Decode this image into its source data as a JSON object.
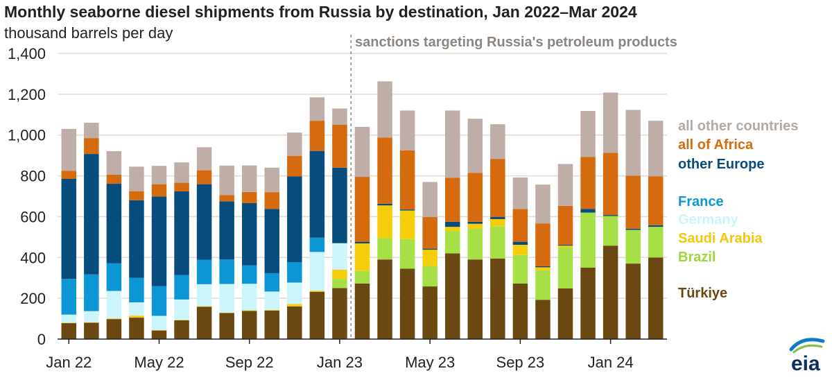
{
  "title": "Monthly seaborne diesel shipments from Russia by destination, Jan 2022–Mar 2024",
  "subtitle": "thousand barrels per day",
  "annotation": "sanctions targeting Russia's petroleum products",
  "logo_text": "eia",
  "colors": {
    "grid": "#e2dccf",
    "axis": "#222222",
    "dash": "#8c8580"
  },
  "chart_data": {
    "type": "bar",
    "stacked": true,
    "ylim": [
      0,
      1400
    ],
    "yticks": [
      "0",
      "200",
      "400",
      "600",
      "800",
      "1,000",
      "1,200",
      "1,400"
    ],
    "ytick_values": [
      0,
      200,
      400,
      600,
      800,
      1000,
      1200,
      1400
    ],
    "xtick_labels": [
      {
        "index": 0,
        "label": "Jan 22"
      },
      {
        "index": 4,
        "label": "May 22"
      },
      {
        "index": 8,
        "label": "Sep 22"
      },
      {
        "index": 12,
        "label": "Jan 23"
      },
      {
        "index": 16,
        "label": "May 23"
      },
      {
        "index": 20,
        "label": "Sep 23"
      },
      {
        "index": 24,
        "label": "Jan 24"
      }
    ],
    "categories": [
      "Jan 2022",
      "Feb 2022",
      "Mar 2022",
      "Apr 2022",
      "May 2022",
      "Jun 2022",
      "Jul 2022",
      "Aug 2022",
      "Sep 2022",
      "Oct 2022",
      "Nov 2022",
      "Dec 2022",
      "Jan 2023",
      "Feb 2023",
      "Mar 2023",
      "Apr 2023",
      "May 2023",
      "Jun 2023",
      "Jul 2023",
      "Aug 2023",
      "Sep 2023",
      "Oct 2023",
      "Nov 2023",
      "Dec 2023",
      "Jan 2024",
      "Feb 2024",
      "Mar 2024"
    ],
    "sanctions_start_between": [
      12,
      13
    ],
    "series": [
      {
        "name": "Türkiye",
        "color": "#6b4712",
        "values": [
          78,
          80,
          98,
          105,
          42,
          92,
          158,
          128,
          138,
          140,
          160,
          232,
          250,
          272,
          390,
          345,
          258,
          420,
          390,
          395,
          272,
          192,
          248,
          350,
          458,
          370,
          400
        ]
      },
      {
        "name": "Brazil",
        "color": "#a6e046",
        "values": [
          0,
          0,
          0,
          0,
          0,
          0,
          0,
          0,
          0,
          0,
          0,
          0,
          45,
          62,
          105,
          145,
          100,
          110,
          150,
          158,
          140,
          145,
          200,
          270,
          145,
          165,
          150
        ]
      },
      {
        "name": "Saudi Arabia",
        "color": "#f5cd0a",
        "values": [
          2,
          2,
          3,
          10,
          2,
          2,
          3,
          2,
          3,
          3,
          12,
          5,
          45,
          135,
          160,
          140,
          80,
          20,
          25,
          35,
          50,
          15,
          10,
          0,
          0,
          0,
          0
        ]
      },
      {
        "name": "Germany",
        "color": "#ccf4fb",
        "values": [
          40,
          55,
          135,
          65,
          70,
          100,
          108,
          140,
          130,
          90,
          105,
          190,
          130,
          0,
          0,
          0,
          0,
          0,
          0,
          0,
          0,
          0,
          0,
          0,
          0,
          0,
          0
        ]
      },
      {
        "name": "France",
        "color": "#0d96d4",
        "values": [
          175,
          180,
          135,
          120,
          145,
          120,
          120,
          120,
          90,
          90,
          100,
          70,
          0,
          0,
          0,
          0,
          0,
          0,
          0,
          0,
          0,
          0,
          0,
          0,
          0,
          0,
          0
        ]
      },
      {
        "name": "other Europe",
        "color": "#064d7d",
        "values": [
          490,
          590,
          390,
          380,
          440,
          410,
          370,
          285,
          305,
          315,
          420,
          425,
          370,
          8,
          8,
          5,
          5,
          25,
          10,
          10,
          15,
          5,
          5,
          18,
          5,
          6,
          8
        ]
      },
      {
        "name": "all of Africa",
        "color": "#d56b0e",
        "values": [
          40,
          78,
          45,
          45,
          60,
          42,
          68,
          30,
          55,
          82,
          100,
          148,
          210,
          318,
          325,
          290,
          155,
          215,
          240,
          285,
          160,
          210,
          190,
          255,
          305,
          260,
          240
        ]
      },
      {
        "name": "all other countries",
        "color": "#bfaea7",
        "values": [
          205,
          75,
          115,
          120,
          90,
          100,
          113,
          145,
          130,
          120,
          115,
          115,
          80,
          245,
          275,
          195,
          172,
          330,
          265,
          170,
          155,
          190,
          205,
          225,
          295,
          322,
          272
        ]
      }
    ]
  },
  "legend": [
    {
      "label": "all other countries",
      "color": "#bfaea7"
    },
    {
      "label": "all of Africa",
      "color": "#d56b0e"
    },
    {
      "label": "other Europe",
      "color": "#064d7d"
    },
    {
      "label": "France",
      "color": "#0d96d4"
    },
    {
      "label": "Germany",
      "color": "#ccf4fb"
    },
    {
      "label": "Saudi Arabia",
      "color": "#f5cd0a"
    },
    {
      "label": "Brazil",
      "color": "#a6e046"
    },
    {
      "label": "Türkiye",
      "color": "#6b4712"
    }
  ]
}
